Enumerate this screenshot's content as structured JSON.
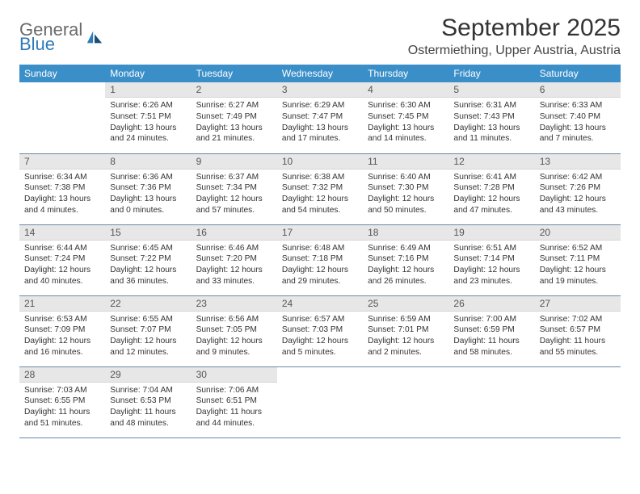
{
  "logo": {
    "general": "General",
    "blue": "Blue"
  },
  "title": "September 2025",
  "location": "Ostermiething, Upper Austria, Austria",
  "day_headers": [
    "Sunday",
    "Monday",
    "Tuesday",
    "Wednesday",
    "Thursday",
    "Friday",
    "Saturday"
  ],
  "colors": {
    "header_bg": "#3b8fc8",
    "header_text": "#ffffff",
    "daynum_bg": "#e7e7e7",
    "row_divider": "#6a8aa5",
    "logo_blue": "#2f7ab8",
    "logo_gray": "#6a6a6a"
  },
  "start_offset": 1,
  "days": [
    {
      "n": "1",
      "sunrise": "6:26 AM",
      "sunset": "7:51 PM",
      "daylight": "13 hours and 24 minutes."
    },
    {
      "n": "2",
      "sunrise": "6:27 AM",
      "sunset": "7:49 PM",
      "daylight": "13 hours and 21 minutes."
    },
    {
      "n": "3",
      "sunrise": "6:29 AM",
      "sunset": "7:47 PM",
      "daylight": "13 hours and 17 minutes."
    },
    {
      "n": "4",
      "sunrise": "6:30 AM",
      "sunset": "7:45 PM",
      "daylight": "13 hours and 14 minutes."
    },
    {
      "n": "5",
      "sunrise": "6:31 AM",
      "sunset": "7:43 PM",
      "daylight": "13 hours and 11 minutes."
    },
    {
      "n": "6",
      "sunrise": "6:33 AM",
      "sunset": "7:40 PM",
      "daylight": "13 hours and 7 minutes."
    },
    {
      "n": "7",
      "sunrise": "6:34 AM",
      "sunset": "7:38 PM",
      "daylight": "13 hours and 4 minutes."
    },
    {
      "n": "8",
      "sunrise": "6:36 AM",
      "sunset": "7:36 PM",
      "daylight": "13 hours and 0 minutes."
    },
    {
      "n": "9",
      "sunrise": "6:37 AM",
      "sunset": "7:34 PM",
      "daylight": "12 hours and 57 minutes."
    },
    {
      "n": "10",
      "sunrise": "6:38 AM",
      "sunset": "7:32 PM",
      "daylight": "12 hours and 54 minutes."
    },
    {
      "n": "11",
      "sunrise": "6:40 AM",
      "sunset": "7:30 PM",
      "daylight": "12 hours and 50 minutes."
    },
    {
      "n": "12",
      "sunrise": "6:41 AM",
      "sunset": "7:28 PM",
      "daylight": "12 hours and 47 minutes."
    },
    {
      "n": "13",
      "sunrise": "6:42 AM",
      "sunset": "7:26 PM",
      "daylight": "12 hours and 43 minutes."
    },
    {
      "n": "14",
      "sunrise": "6:44 AM",
      "sunset": "7:24 PM",
      "daylight": "12 hours and 40 minutes."
    },
    {
      "n": "15",
      "sunrise": "6:45 AM",
      "sunset": "7:22 PM",
      "daylight": "12 hours and 36 minutes."
    },
    {
      "n": "16",
      "sunrise": "6:46 AM",
      "sunset": "7:20 PM",
      "daylight": "12 hours and 33 minutes."
    },
    {
      "n": "17",
      "sunrise": "6:48 AM",
      "sunset": "7:18 PM",
      "daylight": "12 hours and 29 minutes."
    },
    {
      "n": "18",
      "sunrise": "6:49 AM",
      "sunset": "7:16 PM",
      "daylight": "12 hours and 26 minutes."
    },
    {
      "n": "19",
      "sunrise": "6:51 AM",
      "sunset": "7:14 PM",
      "daylight": "12 hours and 23 minutes."
    },
    {
      "n": "20",
      "sunrise": "6:52 AM",
      "sunset": "7:11 PM",
      "daylight": "12 hours and 19 minutes."
    },
    {
      "n": "21",
      "sunrise": "6:53 AM",
      "sunset": "7:09 PM",
      "daylight": "12 hours and 16 minutes."
    },
    {
      "n": "22",
      "sunrise": "6:55 AM",
      "sunset": "7:07 PM",
      "daylight": "12 hours and 12 minutes."
    },
    {
      "n": "23",
      "sunrise": "6:56 AM",
      "sunset": "7:05 PM",
      "daylight": "12 hours and 9 minutes."
    },
    {
      "n": "24",
      "sunrise": "6:57 AM",
      "sunset": "7:03 PM",
      "daylight": "12 hours and 5 minutes."
    },
    {
      "n": "25",
      "sunrise": "6:59 AM",
      "sunset": "7:01 PM",
      "daylight": "12 hours and 2 minutes."
    },
    {
      "n": "26",
      "sunrise": "7:00 AM",
      "sunset": "6:59 PM",
      "daylight": "11 hours and 58 minutes."
    },
    {
      "n": "27",
      "sunrise": "7:02 AM",
      "sunset": "6:57 PM",
      "daylight": "11 hours and 55 minutes."
    },
    {
      "n": "28",
      "sunrise": "7:03 AM",
      "sunset": "6:55 PM",
      "daylight": "11 hours and 51 minutes."
    },
    {
      "n": "29",
      "sunrise": "7:04 AM",
      "sunset": "6:53 PM",
      "daylight": "11 hours and 48 minutes."
    },
    {
      "n": "30",
      "sunrise": "7:06 AM",
      "sunset": "6:51 PM",
      "daylight": "11 hours and 44 minutes."
    }
  ],
  "labels": {
    "sunrise_prefix": "Sunrise: ",
    "sunset_prefix": "Sunset: ",
    "daylight_prefix": "Daylight: "
  }
}
